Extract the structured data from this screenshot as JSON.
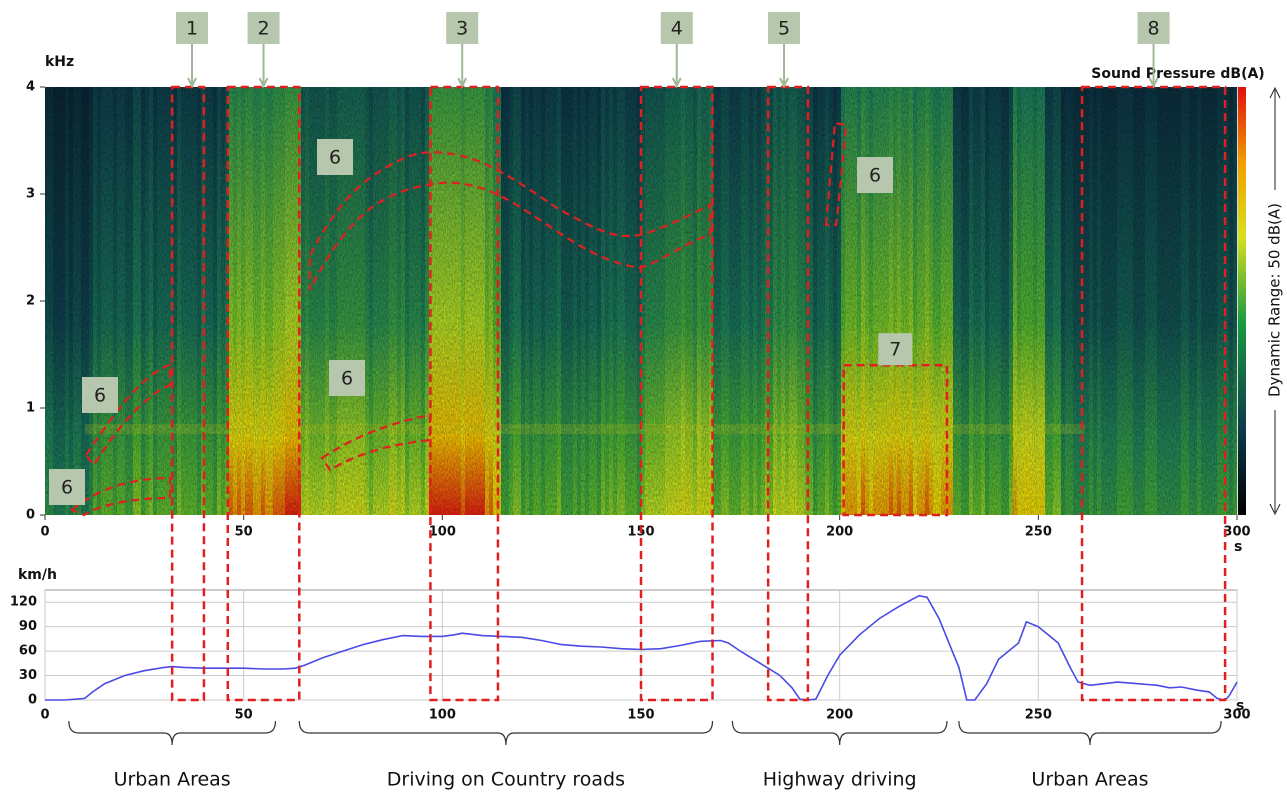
{
  "chart_data": [
    {
      "type": "spectrogram",
      "y_label": "kHz",
      "x_label": "s",
      "colorbar_title": "Sound Pressure dB(A)",
      "colorbar_label": "Dynamic Range: 50 dB(A)",
      "xlim": [
        0,
        300
      ],
      "xticks": [
        0,
        50,
        100,
        150,
        200,
        250,
        300
      ],
      "ylim": [
        0,
        4
      ],
      "yticks": [
        0,
        1,
        2,
        3,
        4
      ],
      "regions": [
        {
          "label": "1",
          "x": [
            32,
            40
          ],
          "marker_x": 37
        },
        {
          "label": "2",
          "x": [
            46,
            64
          ],
          "marker_x": 55
        },
        {
          "label": "3",
          "x": [
            97,
            114
          ],
          "marker_x": 105
        },
        {
          "label": "4",
          "x": [
            150,
            168
          ],
          "marker_x": 159
        },
        {
          "label": "5",
          "x": [
            182,
            192
          ],
          "marker_x": 186
        },
        {
          "label": "8",
          "x": [
            261,
            297
          ],
          "marker_x": 279
        },
        {
          "label": "7",
          "x": [
            201,
            227
          ],
          "y": [
            0,
            1.4
          ]
        }
      ],
      "callouts": [
        "6",
        "6",
        "6",
        "6",
        "6"
      ]
    },
    {
      "type": "line",
      "y_label": "km/h",
      "x_label": "s",
      "xlim": [
        0,
        300
      ],
      "xticks": [
        0,
        50,
        100,
        150,
        200,
        250,
        300
      ],
      "ylim": [
        0,
        135
      ],
      "yticks": [
        0,
        30,
        60,
        90,
        120
      ],
      "grid": true,
      "color": "#4a4ae6",
      "x": [
        0,
        5,
        10,
        12,
        15,
        20,
        25,
        30,
        32,
        35,
        40,
        45,
        50,
        55,
        60,
        63,
        65,
        70,
        75,
        80,
        85,
        90,
        95,
        100,
        103,
        105,
        110,
        115,
        120,
        125,
        130,
        135,
        140,
        145,
        150,
        155,
        160,
        165,
        170,
        172,
        175,
        180,
        185,
        188,
        190,
        192,
        194,
        197,
        200,
        205,
        210,
        215,
        220,
        222,
        225,
        230,
        232,
        234,
        237,
        240,
        245,
        247,
        250,
        255,
        258,
        260,
        263,
        270,
        275,
        280,
        283,
        286,
        290,
        293,
        295,
        297,
        298,
        300
      ],
      "values": [
        0,
        0,
        2,
        10,
        20,
        30,
        36,
        40,
        41,
        40,
        39,
        39,
        39,
        38,
        38,
        39,
        42,
        52,
        60,
        68,
        74,
        79,
        78,
        78,
        80,
        82,
        79,
        78,
        77,
        73,
        68,
        66,
        65,
        63,
        62,
        63,
        67,
        72,
        73,
        70,
        60,
        45,
        30,
        15,
        1,
        0,
        1,
        30,
        55,
        80,
        100,
        115,
        128,
        126,
        100,
        40,
        0,
        0,
        20,
        50,
        70,
        96,
        90,
        70,
        40,
        22,
        18,
        22,
        20,
        18,
        15,
        16,
        12,
        10,
        2,
        0,
        5,
        22
      ],
      "segments": [
        {
          "label": "Urban Areas",
          "x": [
            6,
            58
          ]
        },
        {
          "label": "Driving on Country roads",
          "x": [
            64,
            168
          ]
        },
        {
          "label": "Highway driving",
          "x": [
            173,
            227
          ]
        },
        {
          "label": "Urban Areas",
          "x": [
            230,
            296
          ]
        }
      ]
    }
  ]
}
